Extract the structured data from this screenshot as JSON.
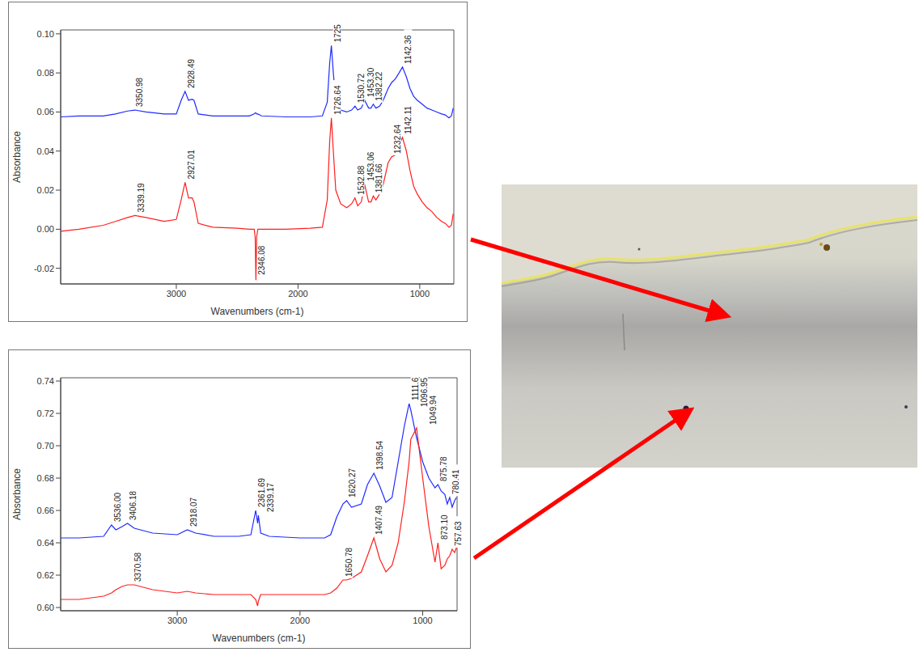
{
  "chart_data": [
    {
      "type": "line",
      "x_label": "Wavenumbers (cm-1)",
      "y_label": "Absorbance",
      "grid": false,
      "xlim": [
        3950,
        720
      ],
      "xticks": [
        3000,
        2000,
        1000
      ],
      "ylim": [
        -0.028,
        0.102
      ],
      "yticks": [
        -0.02,
        {
          "value": 0,
          "label": "0.00"
        },
        0.02,
        0.04,
        0.06,
        0.08,
        {
          "value": 0.1,
          "label": "0.10"
        }
      ],
      "x": [
        3950,
        3800,
        3600,
        3500,
        3400,
        3340,
        3250,
        3100,
        3000,
        2960,
        2928,
        2900,
        2870,
        2855,
        2820,
        2700,
        2500,
        2400,
        2360,
        2352,
        2346,
        2340,
        2330,
        2300,
        2100,
        1900,
        1800,
        1760,
        1740,
        1726,
        1710,
        1690,
        1650,
        1600,
        1560,
        1532,
        1510,
        1480,
        1453,
        1420,
        1400,
        1382,
        1360,
        1330,
        1300,
        1260,
        1232,
        1200,
        1170,
        1142,
        1110,
        1080,
        1050,
        1020,
        980,
        940,
        900,
        860,
        820,
        790,
        760,
        740,
        725
      ],
      "series": [
        {
          "color": "#1f2bff",
          "values": [
            0.0575,
            0.058,
            0.058,
            0.059,
            0.0605,
            0.061,
            0.06,
            0.059,
            0.059,
            0.066,
            0.0705,
            0.066,
            0.0665,
            0.066,
            0.059,
            0.058,
            0.058,
            0.058,
            0.059,
            0.0595,
            0.0595,
            0.059,
            0.059,
            0.058,
            0.0575,
            0.0575,
            0.058,
            0.065,
            0.085,
            0.094,
            0.08,
            0.066,
            0.061,
            0.06,
            0.061,
            0.063,
            0.061,
            0.062,
            0.066,
            0.062,
            0.062,
            0.064,
            0.062,
            0.063,
            0.066,
            0.072,
            0.075,
            0.077,
            0.08,
            0.083,
            0.078,
            0.072,
            0.068,
            0.066,
            0.064,
            0.062,
            0.061,
            0.06,
            0.059,
            0.0585,
            0.057,
            0.058,
            0.062
          ]
        },
        {
          "color": "#ff1f1f",
          "values": [
            -0.001,
            0.0,
            0.002,
            0.004,
            0.006,
            0.007,
            0.006,
            0.004,
            0.005,
            0.015,
            0.024,
            0.016,
            0.016,
            0.014,
            0.003,
            0.001,
            0.0005,
            0.0,
            0.0,
            -0.004,
            -0.026,
            -0.004,
            0.0,
            0.0,
            0.0,
            0.0005,
            0.001,
            0.015,
            0.045,
            0.057,
            0.04,
            0.02,
            0.013,
            0.011,
            0.013,
            0.016,
            0.012,
            0.014,
            0.023,
            0.014,
            0.014,
            0.017,
            0.015,
            0.018,
            0.023,
            0.034,
            0.037,
            0.038,
            0.043,
            0.047,
            0.04,
            0.03,
            0.022,
            0.018,
            0.014,
            0.011,
            0.009,
            0.006,
            0.004,
            0.003,
            0.001,
            0.002,
            0.008
          ]
        }
      ],
      "annotations": [
        {
          "x": 3350.98,
          "y": 0.061,
          "label": "3350.98"
        },
        {
          "x": 2928.49,
          "y": 0.0705,
          "label": "2928.49"
        },
        {
          "x": 1725,
          "y": 0.094,
          "label": "1725"
        },
        {
          "x": 1530.72,
          "y": 0.063,
          "label": "1530.72"
        },
        {
          "x": 1453.3,
          "y": 0.066,
          "label": "1453.30"
        },
        {
          "x": 1382.22,
          "y": 0.064,
          "label": "1382.22"
        },
        {
          "x": 1142.36,
          "y": 0.083,
          "label": "1142.36"
        },
        {
          "x": 3339.19,
          "y": 0.007,
          "label": "3339.19"
        },
        {
          "x": 2927.01,
          "y": 0.024,
          "label": "2927.01"
        },
        {
          "x": 2346.08,
          "y": -0.025,
          "label": "2346.08"
        },
        {
          "x": 1726.64,
          "y": 0.057,
          "label": "1726.64"
        },
        {
          "x": 1532.88,
          "y": 0.016,
          "label": "1532.88"
        },
        {
          "x": 1453.06,
          "y": 0.023,
          "label": "1453.06"
        },
        {
          "x": 1381.66,
          "y": 0.017,
          "label": "1381.66"
        },
        {
          "x": 1232.64,
          "y": 0.037,
          "label": "1232.64"
        },
        {
          "x": 1142.11,
          "y": 0.047,
          "label": "1142.11"
        }
      ]
    },
    {
      "type": "line",
      "x_label": "Wavenumbers (cm-1)",
      "y_label": "Absorbance",
      "grid": false,
      "xlim": [
        3950,
        720
      ],
      "xticks": [
        3000,
        2000,
        1000
      ],
      "ylim": [
        0.598,
        0.742
      ],
      "yticks": [
        {
          "value": 0.6,
          "label": "0.60"
        },
        0.62,
        0.64,
        0.66,
        0.68,
        {
          "value": 0.7,
          "label": "0.70"
        },
        0.72,
        0.74
      ],
      "x": [
        3950,
        3800,
        3600,
        3536,
        3500,
        3450,
        3406,
        3350,
        3200,
        3000,
        2918,
        2850,
        2700,
        2500,
        2400,
        2361,
        2345,
        2339,
        2320,
        2250,
        2000,
        1800,
        1750,
        1700,
        1650,
        1620,
        1580,
        1500,
        1450,
        1398,
        1350,
        1300,
        1250,
        1200,
        1150,
        1111,
        1097,
        1050,
        1000,
        950,
        900,
        876,
        850,
        820,
        800,
        780,
        760,
        740,
        725
      ],
      "series": [
        {
          "color": "#1f2bff",
          "values": [
            0.643,
            0.643,
            0.644,
            0.651,
            0.648,
            0.65,
            0.652,
            0.649,
            0.646,
            0.645,
            0.648,
            0.646,
            0.644,
            0.644,
            0.645,
            0.66,
            0.652,
            0.657,
            0.646,
            0.644,
            0.643,
            0.643,
            0.645,
            0.656,
            0.664,
            0.666,
            0.662,
            0.664,
            0.676,
            0.683,
            0.675,
            0.665,
            0.668,
            0.69,
            0.712,
            0.726,
            0.722,
            0.705,
            0.69,
            0.68,
            0.674,
            0.676,
            0.672,
            0.67,
            0.664,
            0.668,
            0.662,
            0.666,
            0.668
          ]
        },
        {
          "color": "#ff1f1f",
          "values": [
            0.605,
            0.605,
            0.607,
            0.609,
            0.611,
            0.613,
            0.614,
            0.614,
            0.611,
            0.609,
            0.61,
            0.609,
            0.608,
            0.608,
            0.608,
            0.605,
            0.601,
            0.604,
            0.608,
            0.608,
            0.608,
            0.608,
            0.609,
            0.612,
            0.617,
            0.617,
            0.618,
            0.622,
            0.632,
            0.643,
            0.63,
            0.622,
            0.626,
            0.64,
            0.665,
            0.69,
            0.704,
            0.711,
            0.68,
            0.65,
            0.628,
            0.64,
            0.624,
            0.626,
            0.63,
            0.632,
            0.636,
            0.634,
            0.637
          ]
        }
      ],
      "annotations": [
        {
          "x": 3536.0,
          "y": 0.651,
          "label": "3536.00"
        },
        {
          "x": 3406.18,
          "y": 0.652,
          "label": "3406.18"
        },
        {
          "x": 2918.07,
          "y": 0.648,
          "label": "2918.07"
        },
        {
          "x": 2361.69,
          "y": 0.66,
          "label": "2361.69"
        },
        {
          "x": 2339.17,
          "y": 0.657,
          "label": "2339.17"
        },
        {
          "x": 1620.27,
          "y": 0.666,
          "label": "1620.27"
        },
        {
          "x": 1398.54,
          "y": 0.683,
          "label": "1398.54"
        },
        {
          "x": 1111.6,
          "y": 0.726,
          "label": "1111.6"
        },
        {
          "x": 1096.95,
          "y": 0.722,
          "label": "1096.95"
        },
        {
          "x": 875.78,
          "y": 0.676,
          "label": "875.78"
        },
        {
          "x": 780.41,
          "y": 0.668,
          "label": "780.41"
        },
        {
          "x": 3370.58,
          "y": 0.614,
          "label": "3370.58"
        },
        {
          "x": 1650.78,
          "y": 0.617,
          "label": "1650.78"
        },
        {
          "x": 1407.49,
          "y": 0.643,
          "label": "1407.49"
        },
        {
          "x": 1049.94,
          "y": 0.711,
          "label": "1049.94"
        },
        {
          "x": 873.1,
          "y": 0.64,
          "label": "873.10"
        },
        {
          "x": 757.63,
          "y": 0.636,
          "label": "757.63"
        }
      ]
    }
  ]
}
